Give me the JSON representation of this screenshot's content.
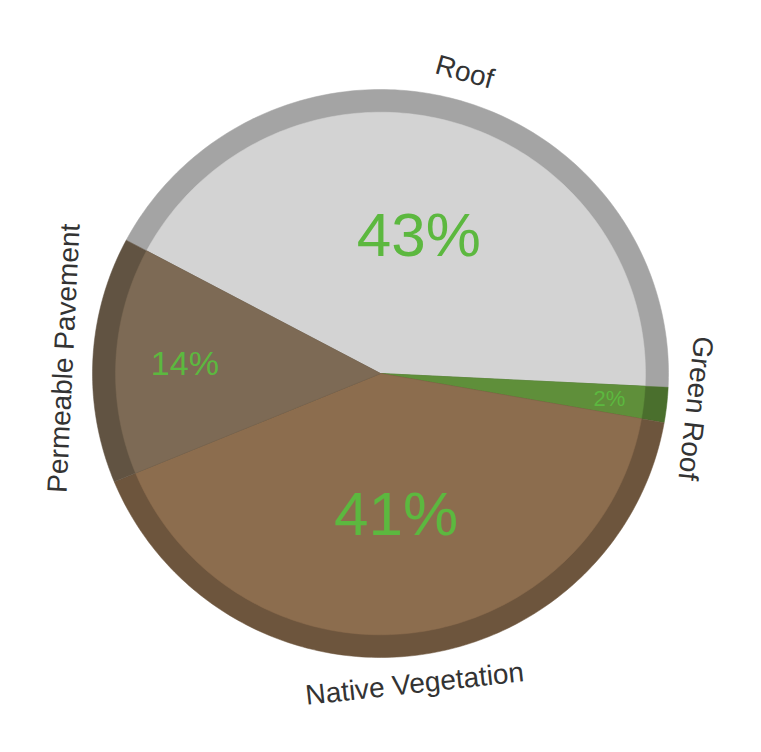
{
  "chart_data": {
    "type": "pie",
    "categories": [
      "Roof",
      "Green Roof",
      "Native Vegetation",
      "Permeable Pavement"
    ],
    "values": [
      43,
      2,
      41,
      14
    ],
    "value_labels": [
      "43%",
      "2%",
      "41%",
      "14%"
    ],
    "colors": [
      "#d3d3d3",
      "#5f8f3a",
      "#8c6d4e",
      "#7d6a55"
    ],
    "data_labels": true
  }
}
